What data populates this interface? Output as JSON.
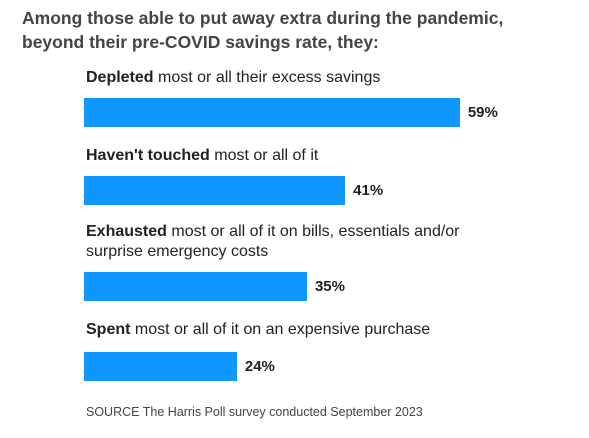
{
  "chart_data": {
    "type": "bar",
    "orientation": "horizontal",
    "title": [
      "Among those able to put away extra during the pandemic,",
      "beyond their pre-COVID savings rate, they:"
    ],
    "categories": [
      {
        "bold": "Depleted",
        "text": "most or all their excess savings"
      },
      {
        "bold": "Haven't touched",
        "text": "most or all of it"
      },
      {
        "bold": "Exhausted",
        "text": "most or all of it on bills, essentials and/or surprise emergency costs"
      },
      {
        "bold": "Spent",
        "text": "most or all of it on an expensive purchase"
      }
    ],
    "values": [
      59,
      41,
      35,
      24
    ],
    "value_labels": [
      "59%",
      "41%",
      "35%",
      "24%"
    ],
    "color": "#0f96ff",
    "source": "SOURCE The Harris Poll survey conducted September 2023"
  }
}
